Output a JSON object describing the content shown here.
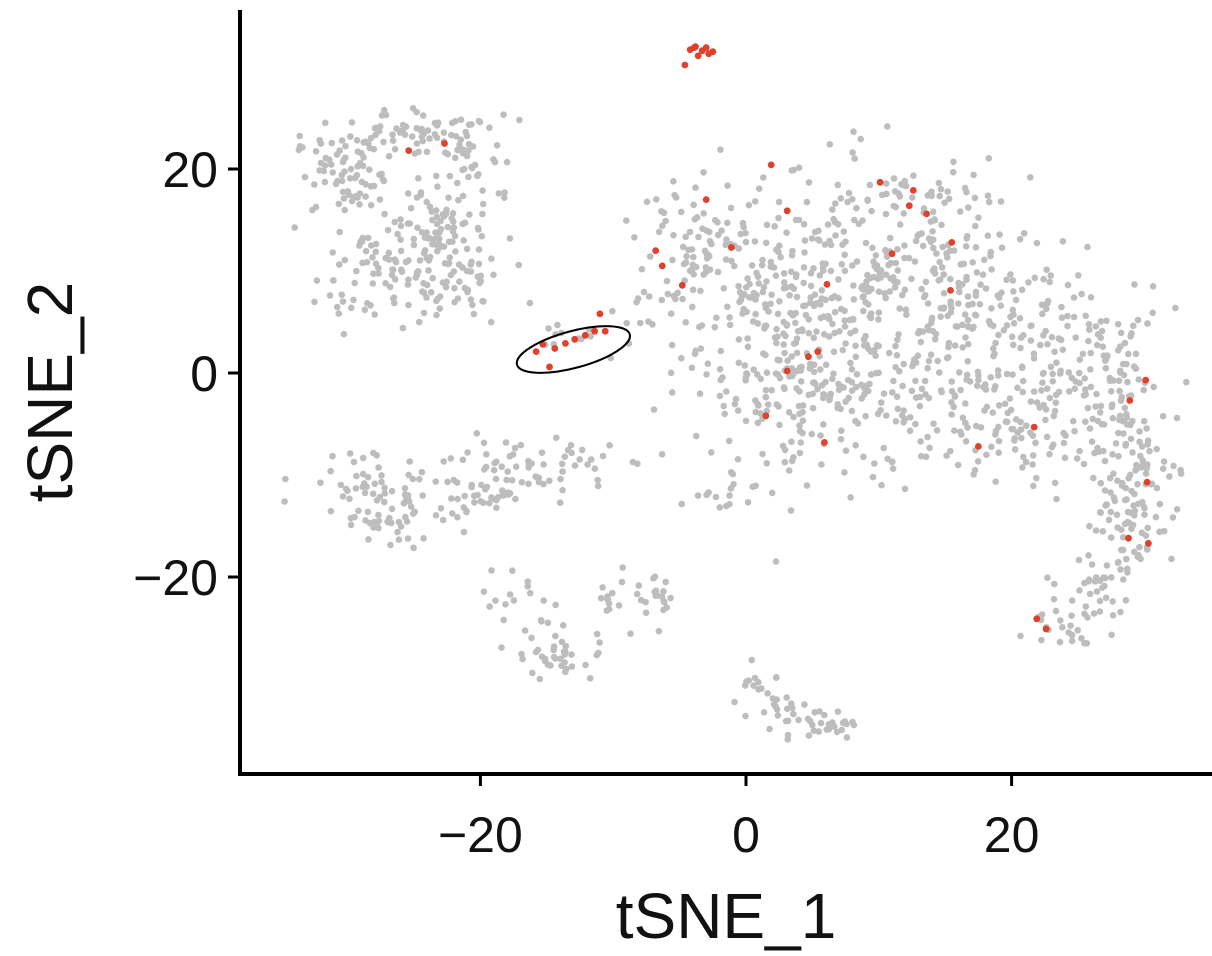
{
  "chart_data": {
    "type": "scatter",
    "title": "",
    "xlabel": "tSNE_1",
    "ylabel": "tSNE_2",
    "xlim": [
      -37,
      35
    ],
    "ylim": [
      -39,
      35
    ],
    "xticks": [
      -20,
      0,
      20
    ],
    "yticks": [
      -20,
      0,
      20
    ],
    "xtick_labels": [
      "−20",
      "0",
      "20"
    ],
    "ytick_labels": [
      "−20",
      "0",
      "20"
    ],
    "grid": false,
    "legend": "none",
    "colors": {
      "background_cells": "#bdbdbd",
      "highlighted_cells": "#e0412c",
      "annotation": "#000000",
      "axis": "#000000"
    },
    "series": [
      {
        "color": "#bdbdbd",
        "clusters": [
          {
            "cx": -29.6,
            "cy": 19.3,
            "sx": 2.2,
            "sy": 2.0,
            "n": 80
          },
          {
            "cx": -24.5,
            "cy": 23.4,
            "sx": 2.8,
            "sy": 1.2,
            "n": 60
          },
          {
            "cx": -20.5,
            "cy": 20.5,
            "sx": 1.6,
            "sy": 2.4,
            "n": 35
          },
          {
            "cx": -22.5,
            "cy": 15.0,
            "sx": 1.4,
            "sy": 2.2,
            "n": 35
          },
          {
            "cx": -28.0,
            "cy": 10.0,
            "sx": 2.2,
            "sy": 2.6,
            "n": 75
          },
          {
            "cx": -22.5,
            "cy": 10.0,
            "sx": 2.4,
            "sy": 2.8,
            "n": 80
          },
          {
            "cx": -28.5,
            "cy": -10.5,
            "sx": 2.5,
            "sy": 1.6,
            "n": 40
          },
          {
            "cx": -27.0,
            "cy": -14.0,
            "sx": 2.0,
            "sy": 2.0,
            "n": 45
          },
          {
            "cx": -20.0,
            "cy": -12.0,
            "sx": 2.4,
            "sy": 1.6,
            "n": 40
          },
          {
            "cx": -15.5,
            "cy": -9.0,
            "sx": 2.8,
            "sy": 1.4,
            "n": 55
          },
          {
            "cx": -17.0,
            "cy": -22.0,
            "sx": 1.5,
            "sy": 1.4,
            "n": 15
          },
          {
            "cx": -14.0,
            "cy": -27.5,
            "sx": 1.9,
            "sy": 1.5,
            "n": 40
          },
          {
            "cx": -7.5,
            "cy": -22.5,
            "sx": 1.2,
            "sy": 1.2,
            "n": 25
          },
          {
            "cx": -10.5,
            "cy": -22.5,
            "sx": 1.1,
            "sy": 0.8,
            "n": 8
          },
          {
            "cx": 1.0,
            "cy": -31.5,
            "sx": 1.0,
            "sy": 1.2,
            "n": 18
          },
          {
            "cx": 4.0,
            "cy": -34.0,
            "sx": 2.0,
            "sy": 0.8,
            "n": 30
          },
          {
            "cx": 6.5,
            "cy": -35.0,
            "sx": 0.8,
            "sy": 0.4,
            "n": 10
          },
          {
            "cx": -12.5,
            "cy": 3.8,
            "sx": 2.2,
            "sy": 0.9,
            "n": 14
          },
          {
            "cx": -8.0,
            "cy": 6.0,
            "sx": 1.5,
            "sy": 2.0,
            "n": 12
          },
          {
            "cx": -3.0,
            "cy": 12.5,
            "sx": 2.5,
            "sy": 3.2,
            "n": 75
          },
          {
            "cx": 2.0,
            "cy": 3.5,
            "sx": 3.5,
            "sy": 6.5,
            "n": 180
          },
          {
            "cx": 9.0,
            "cy": 10.5,
            "sx": 5.0,
            "sy": 5.0,
            "n": 240
          },
          {
            "cx": 8.5,
            "cy": -2.0,
            "sx": 4.5,
            "sy": 4.5,
            "n": 170
          },
          {
            "cx": 18.0,
            "cy": 6.0,
            "sx": 4.0,
            "sy": 4.5,
            "n": 150
          },
          {
            "cx": 21.0,
            "cy": -3.5,
            "sx": 4.0,
            "sy": 3.8,
            "n": 130
          },
          {
            "cx": 27.0,
            "cy": 0.0,
            "sx": 2.5,
            "sy": 3.5,
            "n": 90
          },
          {
            "cx": 29.0,
            "cy": -9.5,
            "sx": 1.8,
            "sy": 3.0,
            "n": 80
          },
          {
            "cx": 28.5,
            "cy": -16.0,
            "sx": 1.6,
            "sy": 2.2,
            "n": 45
          },
          {
            "cx": 26.5,
            "cy": -21.0,
            "sx": 1.4,
            "sy": 1.8,
            "n": 30
          },
          {
            "cx": 24.0,
            "cy": -24.5,
            "sx": 1.3,
            "sy": 1.0,
            "n": 22
          },
          {
            "cx": 13.5,
            "cy": 17.5,
            "sx": 1.8,
            "sy": 1.2,
            "n": 20
          },
          {
            "cx": -2.0,
            "cy": -11.5,
            "sx": 1.6,
            "sy": 1.0,
            "n": 15
          }
        ]
      },
      {
        "color": "#e0412c",
        "points": [
          [
            -3.9,
            31.9
          ],
          [
            -3.3,
            31.6
          ],
          [
            -2.8,
            31.3
          ],
          [
            -3.6,
            31.1
          ],
          [
            -4.2,
            31.7
          ],
          [
            -2.5,
            31.5
          ],
          [
            -3.0,
            31.9
          ],
          [
            -4.6,
            30.2
          ],
          [
            -3.8,
            32.0
          ],
          [
            -15.3,
            2.8
          ],
          [
            -14.4,
            2.4
          ],
          [
            -13.6,
            2.9
          ],
          [
            -12.9,
            3.3
          ],
          [
            -12.1,
            3.7
          ],
          [
            -11.4,
            4.1
          ],
          [
            -10.6,
            4.1
          ],
          [
            -14.8,
            0.6
          ],
          [
            -15.8,
            2.1
          ],
          [
            -11.0,
            5.8
          ],
          [
            -6.8,
            12.0
          ],
          [
            -6.3,
            10.5
          ],
          [
            -4.8,
            8.6
          ],
          [
            -3.0,
            17.0
          ],
          [
            -1.1,
            12.3
          ],
          [
            1.9,
            20.4
          ],
          [
            3.1,
            15.9
          ],
          [
            10.1,
            18.7
          ],
          [
            12.6,
            17.9
          ],
          [
            12.3,
            16.4
          ],
          [
            13.6,
            15.6
          ],
          [
            11.0,
            11.7
          ],
          [
            15.5,
            12.8
          ],
          [
            15.4,
            8.1
          ],
          [
            6.1,
            8.7
          ],
          [
            5.4,
            2.1
          ],
          [
            4.7,
            1.6
          ],
          [
            3.1,
            0.2
          ],
          [
            1.5,
            -4.2
          ],
          [
            5.9,
            -6.8
          ],
          [
            -22.7,
            22.5
          ],
          [
            -25.4,
            21.8
          ],
          [
            17.5,
            -7.2
          ],
          [
            21.7,
            -5.3
          ],
          [
            30.1,
            -0.7
          ],
          [
            28.9,
            -2.7
          ],
          [
            30.2,
            -10.7
          ],
          [
            28.8,
            -16.2
          ],
          [
            30.3,
            -16.7
          ],
          [
            21.9,
            -24.1
          ],
          [
            22.6,
            -25.1
          ]
        ]
      }
    ],
    "annotations": [
      {
        "type": "ellipse",
        "center": [
          -13.0,
          2.3
        ],
        "rx": 4.4,
        "ry": 1.8,
        "angle": -15
      }
    ]
  }
}
